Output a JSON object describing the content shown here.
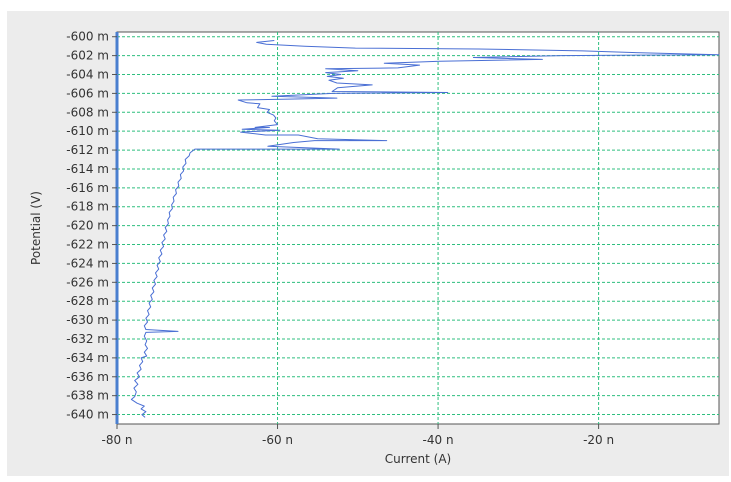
{
  "chart_data": {
    "type": "line",
    "title": "",
    "xlabel": "Current (A)",
    "ylabel": "Potential (V)",
    "xlim": [
      -80,
      -5
    ],
    "ylim": [
      -641,
      -599.5
    ],
    "x_unit_note": "n",
    "y_unit_note": "m",
    "grid": true,
    "x_ticks": [
      {
        "value": -80,
        "label": "-80 n"
      },
      {
        "value": -60,
        "label": "-60 n"
      },
      {
        "value": -40,
        "label": "-40 n"
      },
      {
        "value": -20,
        "label": "-20 n"
      }
    ],
    "y_ticks": [
      {
        "value": -600,
        "label": "-600 m"
      },
      {
        "value": -602,
        "label": "-602 m"
      },
      {
        "value": -604,
        "label": "-604 m"
      },
      {
        "value": -606,
        "label": "-606 m"
      },
      {
        "value": -608,
        "label": "-608 m"
      },
      {
        "value": -610,
        "label": "-610 m"
      },
      {
        "value": -612,
        "label": "-612 m"
      },
      {
        "value": -614,
        "label": "-614 m"
      },
      {
        "value": -616,
        "label": "-616 m"
      },
      {
        "value": -618,
        "label": "-618 m"
      },
      {
        "value": -620,
        "label": "-620 m"
      },
      {
        "value": -622,
        "label": "-622 m"
      },
      {
        "value": -624,
        "label": "-624 m"
      },
      {
        "value": -626,
        "label": "-626 m"
      },
      {
        "value": -628,
        "label": "-628 m"
      },
      {
        "value": -630,
        "label": "-630 m"
      },
      {
        "value": -632,
        "label": "-632 m"
      },
      {
        "value": -634,
        "label": "-634 m"
      },
      {
        "value": -636,
        "label": "-636 m"
      },
      {
        "value": -638,
        "label": "-638 m"
      },
      {
        "value": -640,
        "label": "-640 m"
      }
    ],
    "colors": {
      "series": "#4a6fd4",
      "grid": "#2fbf7f",
      "axis": "#4a7fcf",
      "frame": "#555555",
      "panel": "#ececec"
    },
    "series": [
      {
        "points": [
          [
            -76.5,
            -640.3
          ],
          [
            -76.9,
            -640.0
          ],
          [
            -76.4,
            -639.7
          ],
          [
            -77.0,
            -639.4
          ],
          [
            -76.6,
            -639.1
          ],
          [
            -77.5,
            -638.8
          ],
          [
            -78.2,
            -638.4
          ],
          [
            -77.8,
            -638.1
          ],
          [
            -77.6,
            -637.6
          ],
          [
            -77.9,
            -637.2
          ],
          [
            -77.4,
            -636.8
          ],
          [
            -77.8,
            -636.4
          ],
          [
            -77.2,
            -636.0
          ],
          [
            -77.5,
            -635.6
          ],
          [
            -77.0,
            -635.2
          ],
          [
            -77.2,
            -634.8
          ],
          [
            -76.8,
            -634.4
          ],
          [
            -77.0,
            -634.0
          ],
          [
            -76.3,
            -633.8
          ],
          [
            -76.6,
            -633.4
          ],
          [
            -76.2,
            -633.0
          ],
          [
            -76.5,
            -632.6
          ],
          [
            -76.3,
            -632.2
          ],
          [
            -76.6,
            -631.7
          ],
          [
            -76.4,
            -631.3
          ],
          [
            -72.4,
            -631.2
          ],
          [
            -76.4,
            -631.0
          ],
          [
            -76.6,
            -630.6
          ],
          [
            -76.2,
            -630.2
          ],
          [
            -76.4,
            -629.8
          ],
          [
            -76.0,
            -629.4
          ],
          [
            -76.2,
            -629.0
          ],
          [
            -75.8,
            -628.6
          ],
          [
            -76.0,
            -628.2
          ],
          [
            -75.6,
            -627.8
          ],
          [
            -75.8,
            -627.4
          ],
          [
            -75.4,
            -627.0
          ],
          [
            -75.6,
            -626.6
          ],
          [
            -75.2,
            -626.2
          ],
          [
            -75.4,
            -625.8
          ],
          [
            -75.0,
            -625.4
          ],
          [
            -75.2,
            -625.0
          ],
          [
            -74.8,
            -624.6
          ],
          [
            -75.0,
            -624.2
          ],
          [
            -74.6,
            -623.8
          ],
          [
            -74.8,
            -623.4
          ],
          [
            -74.4,
            -623.0
          ],
          [
            -74.6,
            -622.6
          ],
          [
            -74.2,
            -622.2
          ],
          [
            -74.4,
            -621.8
          ],
          [
            -74.0,
            -621.4
          ],
          [
            -74.2,
            -621.0
          ],
          [
            -73.8,
            -620.6
          ],
          [
            -74.0,
            -620.2
          ],
          [
            -73.6,
            -619.8
          ],
          [
            -73.7,
            -619.4
          ],
          [
            -73.4,
            -619.0
          ],
          [
            -73.5,
            -618.6
          ],
          [
            -73.1,
            -618.2
          ],
          [
            -73.2,
            -617.8
          ],
          [
            -72.9,
            -617.4
          ],
          [
            -73.0,
            -617.0
          ],
          [
            -72.6,
            -616.6
          ],
          [
            -72.7,
            -616.2
          ],
          [
            -72.3,
            -615.8
          ],
          [
            -72.4,
            -615.4
          ],
          [
            -72.0,
            -615.0
          ],
          [
            -72.1,
            -614.6
          ],
          [
            -71.7,
            -614.2
          ],
          [
            -71.8,
            -613.8
          ],
          [
            -71.4,
            -613.4
          ],
          [
            -71.5,
            -613.0
          ],
          [
            -71.0,
            -612.6
          ],
          [
            -70.9,
            -612.3
          ],
          [
            -70.3,
            -611.9
          ],
          [
            -52.3,
            -611.9
          ],
          [
            -61.2,
            -611.6
          ],
          [
            -58.0,
            -611.2
          ],
          [
            -55.4,
            -611.0
          ],
          [
            -46.4,
            -611.0
          ],
          [
            -55.0,
            -610.8
          ],
          [
            -57.4,
            -610.4
          ],
          [
            -61.5,
            -610.4
          ],
          [
            -64.6,
            -610.1
          ],
          [
            -59.7,
            -609.9
          ],
          [
            -64.4,
            -609.8
          ],
          [
            -61.0,
            -609.6
          ],
          [
            -62.8,
            -609.6
          ],
          [
            -60.0,
            -609.3
          ],
          [
            -60.4,
            -608.9
          ],
          [
            -60.2,
            -608.6
          ],
          [
            -60.5,
            -608.3
          ],
          [
            -61.3,
            -608.0
          ],
          [
            -61.0,
            -607.7
          ],
          [
            -62.5,
            -607.5
          ],
          [
            -62.2,
            -607.1
          ],
          [
            -63.8,
            -607.0
          ],
          [
            -64.9,
            -606.7
          ],
          [
            -58.6,
            -606.6
          ],
          [
            -52.6,
            -606.5
          ],
          [
            -60.7,
            -606.3
          ],
          [
            -53.1,
            -606.0
          ],
          [
            -38.8,
            -605.9
          ],
          [
            -53.2,
            -605.8
          ],
          [
            -52.5,
            -605.4
          ],
          [
            -48.2,
            -605.1
          ],
          [
            -52.6,
            -604.9
          ],
          [
            -53.6,
            -604.6
          ],
          [
            -51.8,
            -604.4
          ],
          [
            -53.8,
            -604.2
          ],
          [
            -52.1,
            -604.0
          ],
          [
            -54.0,
            -603.8
          ],
          [
            -50.0,
            -603.6
          ],
          [
            -54.0,
            -603.4
          ],
          [
            -45.0,
            -603.3
          ],
          [
            -42.3,
            -603.0
          ],
          [
            -46.7,
            -602.8
          ],
          [
            -39.8,
            -602.6
          ],
          [
            -27.0,
            -602.4
          ],
          [
            -35.6,
            -602.2
          ],
          [
            -24.6,
            -602.0
          ],
          [
            -5.0,
            -601.9
          ],
          [
            -14.8,
            -601.7
          ],
          [
            -22.0,
            -601.5
          ],
          [
            -35.0,
            -601.3
          ],
          [
            -50.3,
            -601.2
          ],
          [
            -56.6,
            -601.0
          ],
          [
            -61.4,
            -600.8
          ],
          [
            -62.6,
            -600.6
          ],
          [
            -60.4,
            -600.4
          ]
        ]
      }
    ]
  }
}
